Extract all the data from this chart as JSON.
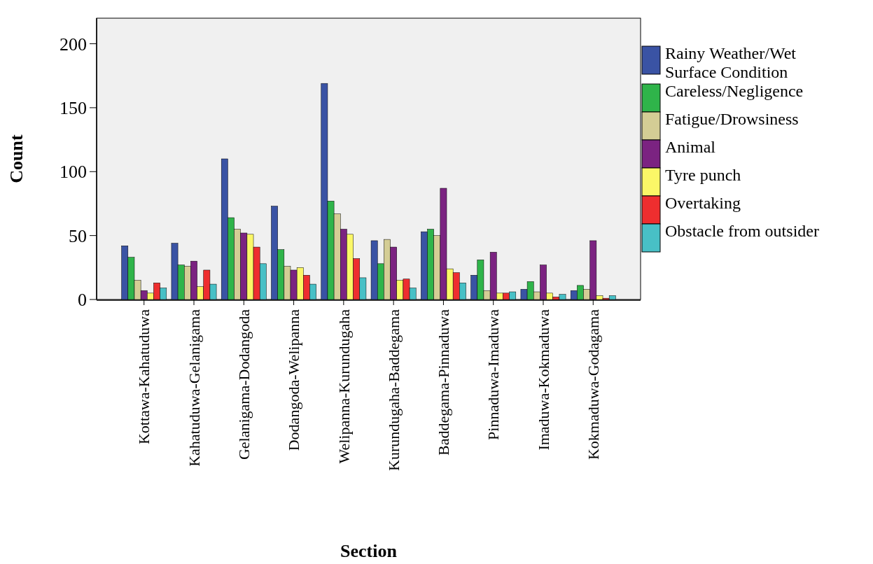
{
  "chart_data": {
    "type": "bar",
    "xlabel": "Section",
    "ylabel": "Count",
    "categories": [
      "Kottawa-Kahatuduwa",
      "Kahatuduwa-Gelanigama",
      "Gelanigama-Dodangoda",
      "Dodangoda-Welipanna",
      "Welipanna-Kurundugaha",
      "Kurundugaha-Baddegama",
      "Baddegama-Pinnaduwa",
      "Pinnaduwa-Imaduwa",
      "Imaduwa-Kokmaduwa",
      "Kokmaduwa-Godagama"
    ],
    "series": [
      {
        "name": "Rainy Weather/Wet Surface Condition",
        "color": "#3a53a4",
        "values": [
          42,
          44,
          110,
          73,
          169,
          46,
          53,
          19,
          8,
          7
        ]
      },
      {
        "name": "Careless/Negligence",
        "color": "#2fb44a",
        "values": [
          33,
          27,
          64,
          39,
          77,
          28,
          55,
          31,
          14,
          11
        ]
      },
      {
        "name": "Fatigue/Drowsiness",
        "color": "#d4cd95",
        "values": [
          15,
          26,
          55,
          26,
          67,
          47,
          50,
          7,
          6,
          8
        ]
      },
      {
        "name": "Animal",
        "color": "#7b2381",
        "values": [
          7,
          30,
          52,
          23,
          55,
          41,
          87,
          37,
          27,
          46
        ]
      },
      {
        "name": "Tyre punch",
        "color": "#fbf767",
        "values": [
          5,
          10,
          51,
          25,
          51,
          15,
          24,
          5,
          5,
          3
        ]
      },
      {
        "name": "Overtaking",
        "color": "#ee2e2f",
        "values": [
          13,
          23,
          41,
          19,
          32,
          16,
          21,
          5,
          2,
          1
        ]
      },
      {
        "name": "Obstacle from outsider",
        "color": "#48c0c6",
        "values": [
          9,
          12,
          28,
          12,
          17,
          9,
          13,
          6,
          4,
          3
        ]
      }
    ],
    "ylim": [
      0,
      220
    ],
    "yticks": [
      0,
      50,
      100,
      150,
      200
    ],
    "grid": false,
    "legend": "right"
  }
}
